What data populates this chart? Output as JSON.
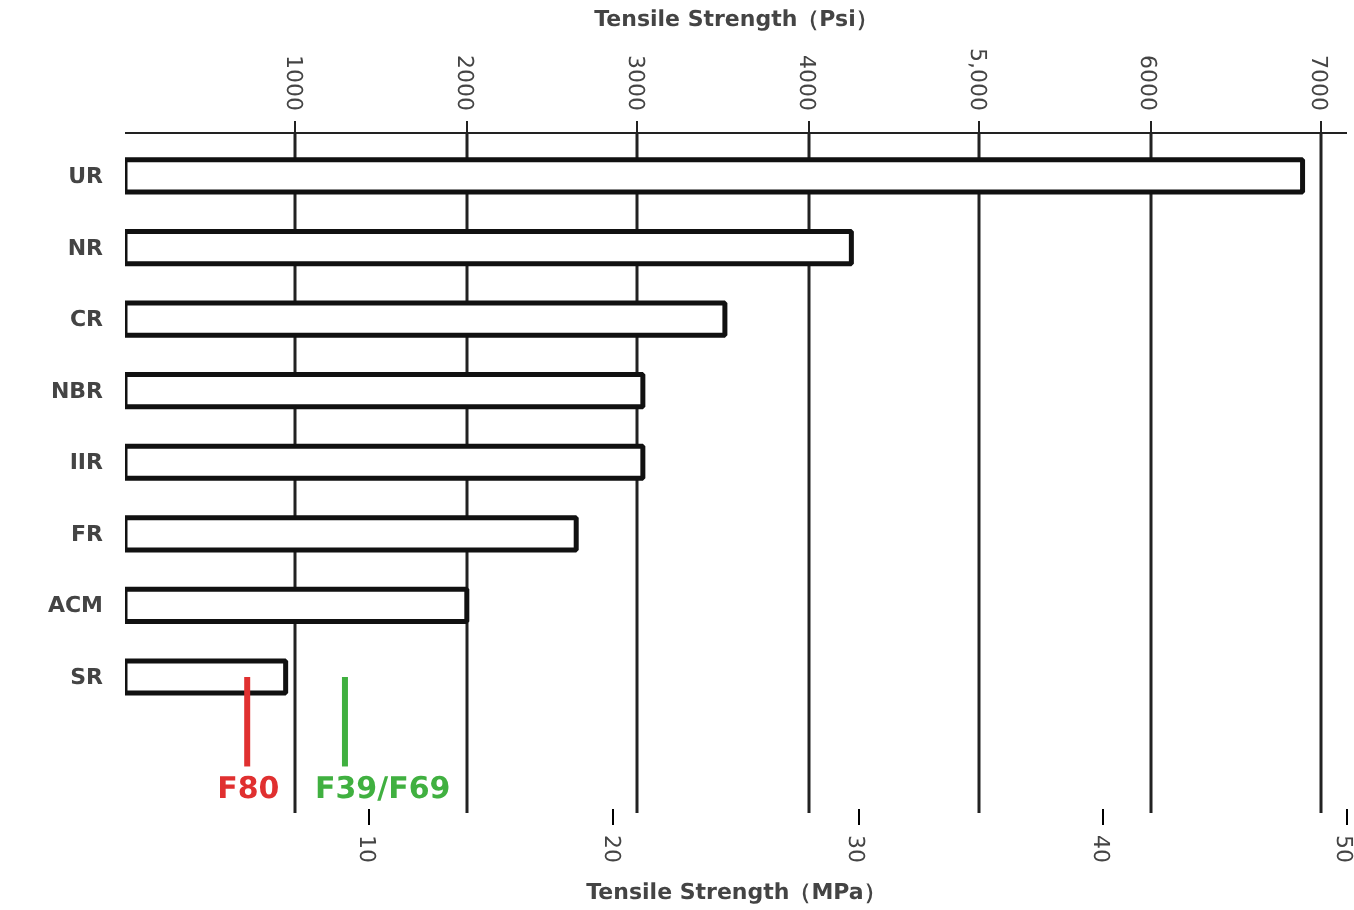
{
  "chart_data": {
    "type": "bar",
    "orientation": "horizontal",
    "xlabel": "Tensile Strength（Psi）",
    "x2label": "Tensile Strength（MPa）",
    "categories": [
      "UR",
      "NR",
      "CR",
      "NBR",
      "IIR",
      "FR",
      "ACM",
      "SR"
    ],
    "values": [
      6890,
      4250,
      3510,
      3030,
      3030,
      2640,
      2000,
      940
    ],
    "color": "#ffffff",
    "xlim": [
      0,
      7150
    ],
    "xticks": [
      1000,
      2000,
      3000,
      4000,
      {
        "value": 5000,
        "label": "5,000"
      },
      6000,
      7000
    ],
    "x2lim": [
      0,
      50
    ],
    "x2ticks": [
      10,
      20,
      30,
      40,
      50
    ],
    "ref_lines": [
      {
        "axis": "x2",
        "value": 5,
        "label": "F80",
        "color": "#e03030"
      },
      {
        "axis": "x2",
        "value": 9,
        "label": "F39/F69",
        "color": "#40b040"
      }
    ],
    "grid": "x"
  }
}
